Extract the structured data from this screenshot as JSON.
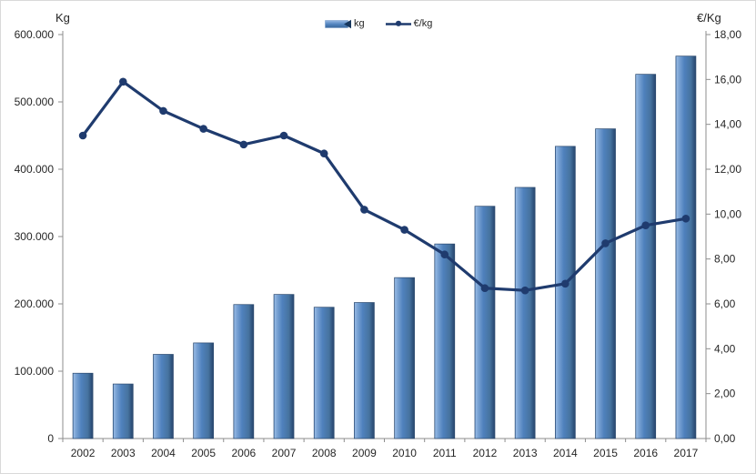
{
  "chart_data": {
    "type": "bar",
    "subtype": "combo-bar-line",
    "categories": [
      "2002",
      "2003",
      "2004",
      "2005",
      "2006",
      "2007",
      "2008",
      "2009",
      "2010",
      "2011",
      "2012",
      "2013",
      "2014",
      "2015",
      "2016",
      "2017"
    ],
    "series": [
      {
        "name": "kg",
        "type": "bar",
        "axis": "left",
        "values": [
          97000,
          81000,
          125000,
          142000,
          199000,
          214000,
          195000,
          202000,
          239000,
          289000,
          345000,
          373000,
          434000,
          460000,
          541000,
          568000
        ],
        "color": "#4f81bd",
        "highlight": "#93b7e2",
        "shade": "#2b496f"
      },
      {
        "name": "€/kg",
        "type": "line",
        "axis": "right",
        "values": [
          13.5,
          15.9,
          14.6,
          13.8,
          13.1,
          13.5,
          12.7,
          10.2,
          9.3,
          8.2,
          6.7,
          6.6,
          6.9,
          8.7,
          9.5,
          9.8
        ],
        "color": "#1f3b6e"
      }
    ],
    "left_axis": {
      "title": "Kg",
      "min": 0,
      "max": 600000,
      "step": 100000,
      "tick_labels": [
        "0",
        "100.000",
        "200.000",
        "300.000",
        "400.000",
        "500.000",
        "600.000"
      ]
    },
    "right_axis": {
      "title": "€/Kg",
      "min": 0,
      "max": 18,
      "step": 2,
      "tick_labels": [
        "0,00",
        "2,00",
        "4,00",
        "6,00",
        "8,00",
        "10,00",
        "12,00",
        "14,00",
        "16,00",
        "18,00"
      ]
    },
    "legend": {
      "position": "top-center",
      "entries": [
        "kg",
        "€/kg"
      ]
    },
    "grid": false,
    "colors": {
      "axis": "#8e8e8e",
      "text": "#262626",
      "background": "#ffffff",
      "border": "#d9d9d9"
    }
  }
}
